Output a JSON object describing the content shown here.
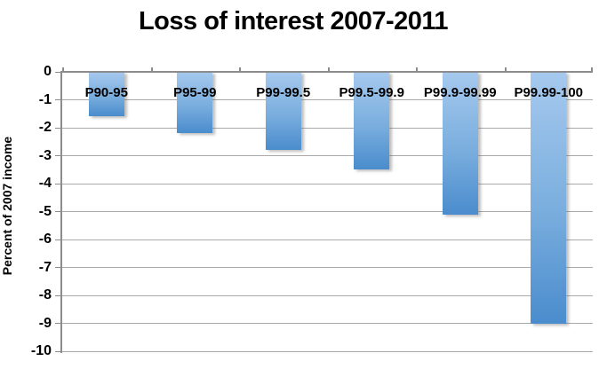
{
  "title": "Loss of interest 2007-2011",
  "chart_data": {
    "type": "bar",
    "title": "Loss of interest 2007-2011",
    "categories": [
      "P90-95",
      "P95-99",
      "P99-99.5",
      "P99.5-99.9",
      "P99.9-99.99",
      "P99.99-100"
    ],
    "values": [
      -1.6,
      -2.2,
      -2.8,
      -3.5,
      -5.1,
      -9.0
    ],
    "xlabel": "",
    "ylabel": "Percent of 2007 income",
    "ylim": [
      -10,
      0
    ],
    "ytick_step": 1,
    "ytick_labels": [
      "0",
      "-1",
      "-2",
      "-3",
      "-4",
      "-5",
      "-6",
      "-7",
      "-8",
      "-9",
      "-10"
    ],
    "grid": true,
    "legend": false,
    "colors": {
      "bar_top": "#a6c9ee",
      "bar_bottom": "#4a8ccd",
      "gridline": "#a9a9a9",
      "axis": "#8c8c8c",
      "text": "#000000",
      "background": "#ffffff"
    }
  }
}
